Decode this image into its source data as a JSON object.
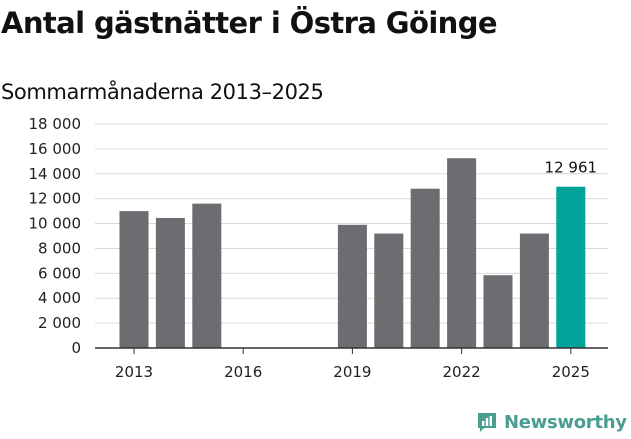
{
  "title": "Antal gästnätter i Östra Göinge",
  "subtitle": "Sommarmånaderna 2013–2025",
  "brand": {
    "name": "Newsworthy",
    "icon": "bar-chart-logo-icon",
    "color": "#4a9e90"
  },
  "colors": {
    "default_bar": "#6d6c71",
    "highlight_bar": "#00a39a",
    "grid": "#d9d9d9",
    "axis": "#333333"
  },
  "chart_data": {
    "type": "bar",
    "title": "Antal gästnätter i Östra Göinge",
    "subtitle": "Sommarmånaderna 2013–2025",
    "xlabel": "",
    "ylabel": "",
    "categories": [
      2013,
      2014,
      2015,
      2016,
      2017,
      2018,
      2019,
      2020,
      2021,
      2022,
      2023,
      2024,
      2025
    ],
    "values": [
      11000,
      10450,
      11600,
      null,
      null,
      null,
      9900,
      9200,
      12800,
      15250,
      5850,
      9200,
      12961
    ],
    "x_tick_labels": [
      "2013",
      "2016",
      "2019",
      "2022",
      "2025"
    ],
    "y_tick_labels": [
      "0",
      "2 000",
      "4 000",
      "6 000",
      "8 000",
      "10 000",
      "12 000",
      "14 000",
      "16 000",
      "18 000"
    ],
    "ylim": [
      0,
      18000
    ],
    "grid": true,
    "legend": "none",
    "highlight": {
      "category": 2025,
      "label": "12 961"
    }
  }
}
